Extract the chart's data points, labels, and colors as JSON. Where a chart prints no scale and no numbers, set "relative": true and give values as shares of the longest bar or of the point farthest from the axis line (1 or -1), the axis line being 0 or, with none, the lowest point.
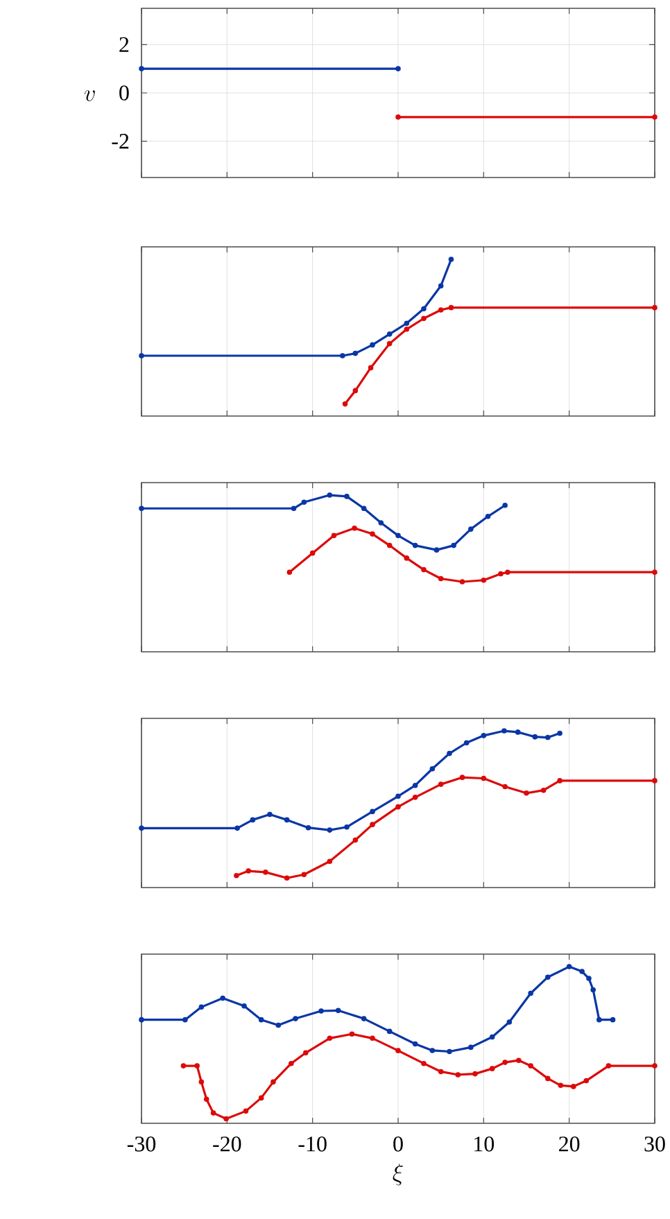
{
  "chart_data": [
    {
      "type": "line",
      "ylabel": "v",
      "xlim": [
        -30,
        30
      ],
      "xticks": [
        -30,
        -20,
        -10,
        0,
        10,
        20,
        30
      ],
      "ylim": [
        -3.5,
        3.5
      ],
      "yticks": [
        -2,
        0,
        2
      ],
      "tick_labels": "y",
      "grid": true,
      "marker": "circle",
      "series": [
        {
          "color": "#0a36a6",
          "x": [
            -30,
            0
          ],
          "values": [
            1,
            1
          ]
        },
        {
          "color": "#dd0a0a",
          "x": [
            0,
            30
          ],
          "values": [
            -1,
            -1
          ]
        }
      ]
    },
    {
      "type": "line",
      "relative": true,
      "xlim": [
        -30,
        30
      ],
      "xticks": [
        -30,
        -20,
        -10,
        0,
        10,
        20,
        30
      ],
      "tick_labels": false,
      "grid": "x",
      "marker": "circle",
      "series": [
        {
          "color": "#0a36a6",
          "x": [
            -30,
            -6.5,
            -5,
            -3,
            -1,
            1,
            3,
            5,
            6.2
          ],
          "values": [
            0.385,
            0.385,
            0.4,
            0.454,
            0.523,
            0.592,
            0.685,
            0.831,
            1
          ]
        },
        {
          "color": "#dd0a0a",
          "x": [
            -6.2,
            -5,
            -3.2,
            -1,
            1,
            3,
            5,
            6.2,
            30
          ],
          "values": [
            0.077,
            0.162,
            0.308,
            0.462,
            0.554,
            0.623,
            0.677,
            0.692,
            0.692
          ]
        }
      ]
    },
    {
      "type": "line",
      "relative": true,
      "xlim": [
        -30,
        30
      ],
      "xticks": [
        -30,
        -20,
        -10,
        0,
        10,
        20,
        30
      ],
      "tick_labels": false,
      "grid": "x",
      "marker": "circle",
      "series": [
        {
          "color": "#0a36a6",
          "x": [
            -30,
            -12.2,
            -11,
            -8,
            -6,
            -4,
            -2,
            0,
            2,
            4.5,
            6.5,
            8.5,
            10.5,
            12.5
          ],
          "values": [
            0.915,
            0.915,
            0.955,
            1,
            0.992,
            0.915,
            0.823,
            0.742,
            0.679,
            0.65,
            0.679,
            0.783,
            0.864,
            0.935
          ]
        },
        {
          "color": "#dd0a0a",
          "x": [
            -12.7,
            -10,
            -7.5,
            -5.1,
            -3,
            -1,
            1,
            3,
            5,
            7.5,
            10,
            12,
            12.8,
            30
          ],
          "values": [
            0.508,
            0.63,
            0.742,
            0.789,
            0.752,
            0.679,
            0.598,
            0.524,
            0.467,
            0.447,
            0.457,
            0.498,
            0.508,
            0.508
          ]
        }
      ]
    },
    {
      "type": "line",
      "relative": true,
      "xlim": [
        -30,
        30
      ],
      "xticks": [
        -30,
        -20,
        -10,
        0,
        10,
        20,
        30
      ],
      "tick_labels": false,
      "grid": "x",
      "marker": "circle",
      "series": [
        {
          "color": "#0a36a6",
          "x": [
            -30,
            -18.8,
            -17,
            -15,
            -13,
            -10.5,
            -8,
            -6,
            -3,
            0,
            2,
            4,
            6,
            8,
            10,
            12.4,
            14,
            16,
            17.5,
            18.9
          ],
          "values": [
            0.379,
            0.379,
            0.432,
            0.467,
            0.432,
            0.382,
            0.367,
            0.386,
            0.485,
            0.583,
            0.652,
            0.758,
            0.856,
            0.924,
            0.97,
            1,
            0.992,
            0.962,
            0.958,
            0.985
          ]
        },
        {
          "color": "#dd0a0a",
          "x": [
            -18.9,
            -17.5,
            -15.5,
            -13,
            -11,
            -8,
            -5,
            -3,
            0,
            2,
            5,
            7.5,
            10,
            12.5,
            15,
            17,
            18.9,
            30
          ],
          "values": [
            0.076,
            0.106,
            0.098,
            0.061,
            0.083,
            0.167,
            0.303,
            0.402,
            0.515,
            0.576,
            0.659,
            0.703,
            0.697,
            0.644,
            0.603,
            0.621,
            0.682,
            0.682
          ]
        }
      ]
    },
    {
      "type": "line",
      "relative": true,
      "xlabel": "\\xi",
      "xlim": [
        -30,
        30
      ],
      "xticks": [
        -30,
        -20,
        -10,
        0,
        10,
        20,
        30
      ],
      "tick_labels": "x",
      "grid": "x",
      "marker": "circle",
      "series": [
        {
          "color": "#0a36a6",
          "x": [
            -30,
            -24.9,
            -23,
            -20.5,
            -18,
            -16,
            -14,
            -12,
            -9,
            -7,
            -4,
            -1,
            2,
            4,
            6,
            8.5,
            11,
            13,
            15.5,
            17.5,
            20,
            21.5,
            22.3,
            22.8,
            23.5,
            25.1
          ],
          "values": [
            0.661,
            0.661,
            0.742,
            0.799,
            0.749,
            0.661,
            0.626,
            0.668,
            0.717,
            0.72,
            0.668,
            0.587,
            0.507,
            0.465,
            0.458,
            0.485,
            0.551,
            0.646,
            0.83,
            0.933,
            1,
            0.969,
            0.925,
            0.852,
            0.661,
            0.661
          ]
        },
        {
          "color": "#dd0a0a",
          "x": [
            -25.1,
            -23.5,
            -23,
            -22.4,
            -21.6,
            -20.1,
            -17.8,
            -16,
            -14.6,
            -12.5,
            -10.8,
            -8,
            -5.4,
            -3,
            0,
            3,
            5,
            7,
            9,
            11,
            12.5,
            14.1,
            15.5,
            17.5,
            19,
            20.5,
            22,
            24.6,
            30
          ],
          "values": [
            0.367,
            0.367,
            0.264,
            0.154,
            0.066,
            0.029,
            0.078,
            0.162,
            0.264,
            0.382,
            0.45,
            0.543,
            0.57,
            0.543,
            0.464,
            0.382,
            0.33,
            0.31,
            0.316,
            0.349,
            0.389,
            0.402,
            0.367,
            0.286,
            0.242,
            0.235,
            0.272,
            0.367,
            0.367
          ]
        }
      ]
    }
  ]
}
